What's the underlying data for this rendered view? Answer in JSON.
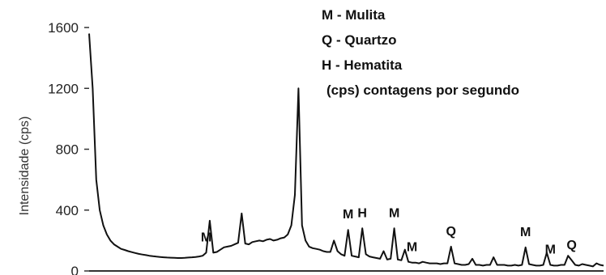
{
  "chart_data": {
    "type": "line",
    "xlabel": "",
    "ylabel": "Intensidade (cps)",
    "ylim": [
      0,
      1600
    ],
    "yticks": [
      "0",
      "400",
      "800",
      "1200",
      "1600"
    ],
    "grid": false,
    "legend": {
      "placement": "top-right",
      "lines": [
        "M - Mulita",
        "Q - Quartzo",
        "H - Hematita",
        "(cps) contagens por segundo"
      ]
    },
    "series": [
      {
        "values": [
          1560,
          1200,
          600,
          400,
          300,
          240,
          200,
          175,
          160,
          145,
          138,
          130,
          124,
          118,
          112,
          108,
          104,
          100,
          97,
          94,
          92,
          90,
          88,
          87,
          86,
          85,
          85,
          86,
          88,
          90,
          92,
          95,
          100,
          120,
          330,
          120,
          125,
          140,
          155,
          160,
          165,
          175,
          185,
          378,
          180,
          175,
          190,
          195,
          200,
          195,
          205,
          210,
          200,
          205,
          215,
          220,
          240,
          300,
          500,
          1200,
          300,
          200,
          160,
          150,
          145,
          140,
          130,
          125,
          125,
          200,
          130,
          110,
          100,
          270,
          100,
          95,
          90,
          280,
          110,
          95,
          90,
          85,
          80,
          130,
          75,
          80,
          280,
          75,
          70,
          140,
          60,
          55,
          55,
          50,
          60,
          55,
          50,
          50,
          50,
          45,
          50,
          50,
          160,
          50,
          45,
          40,
          40,
          45,
          80,
          40,
          40,
          35,
          40,
          40,
          90,
          40,
          40,
          40,
          35,
          35,
          40,
          35,
          40,
          155,
          45,
          40,
          35,
          35,
          40,
          120,
          40,
          35,
          35,
          40,
          40,
          100,
          70,
          40,
          35,
          45,
          40,
          35,
          30,
          50,
          40,
          35
        ]
      }
    ],
    "annotations": [
      {
        "label": "M",
        "x": 33
      },
      {
        "label": "M",
        "x": 73
      },
      {
        "label": "H",
        "x": 77
      },
      {
        "label": "M",
        "x": 86
      },
      {
        "label": "M",
        "x": 91
      },
      {
        "label": "Q",
        "x": 102
      },
      {
        "label": "M",
        "x": 123
      },
      {
        "label": "M",
        "x": 130
      },
      {
        "label": "Q",
        "x": 136
      }
    ]
  }
}
